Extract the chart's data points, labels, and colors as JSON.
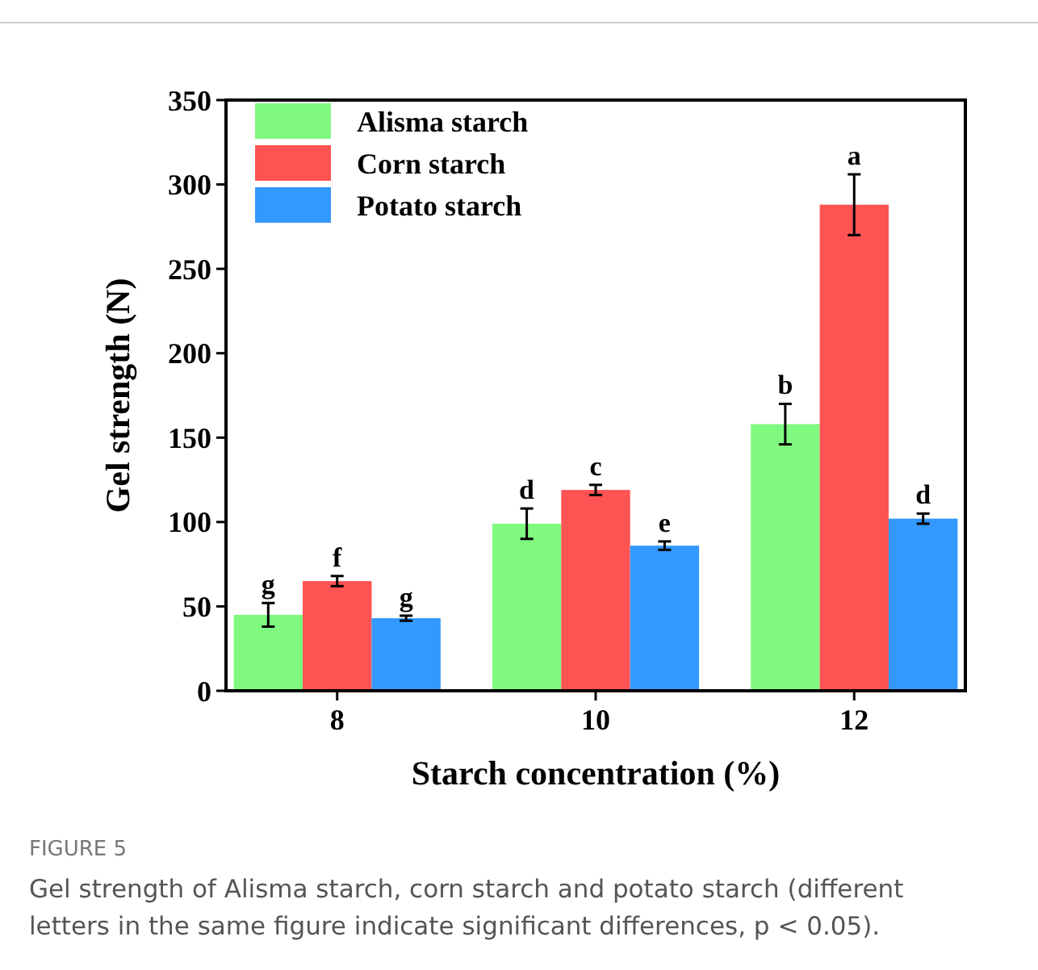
{
  "chart_data": {
    "type": "bar",
    "xlabel": "Starch concentration (%)",
    "ylabel": "Gel strength (N)",
    "categories": [
      "8",
      "10",
      "12"
    ],
    "series": [
      {
        "name": "Alisma starch",
        "color": "#80f980",
        "values": [
          45,
          99,
          158
        ],
        "errors": [
          7,
          9,
          12
        ]
      },
      {
        "name": "Corn starch",
        "color": "#fe5353",
        "values": [
          65,
          119,
          288
        ],
        "errors": [
          3,
          3,
          18
        ]
      },
      {
        "name": "Potato starch",
        "color": "#3399ff",
        "values": [
          43,
          86,
          102
        ],
        "errors": [
          1.5,
          2.5,
          3
        ]
      }
    ],
    "ylim": [
      0,
      350
    ],
    "yticks": [
      0,
      50,
      100,
      150,
      200,
      250,
      300,
      350
    ],
    "grid": false,
    "legend": "top left",
    "annotations": [
      "g",
      "f",
      "g",
      "d",
      "c",
      "e",
      "b",
      "a",
      "d",
      "FIGURE 5",
      "Gel strength of Alisma starch, corn starch and potato starch (different letters in the same figure indicate significant differences, p < 0.05)."
    ]
  }
}
